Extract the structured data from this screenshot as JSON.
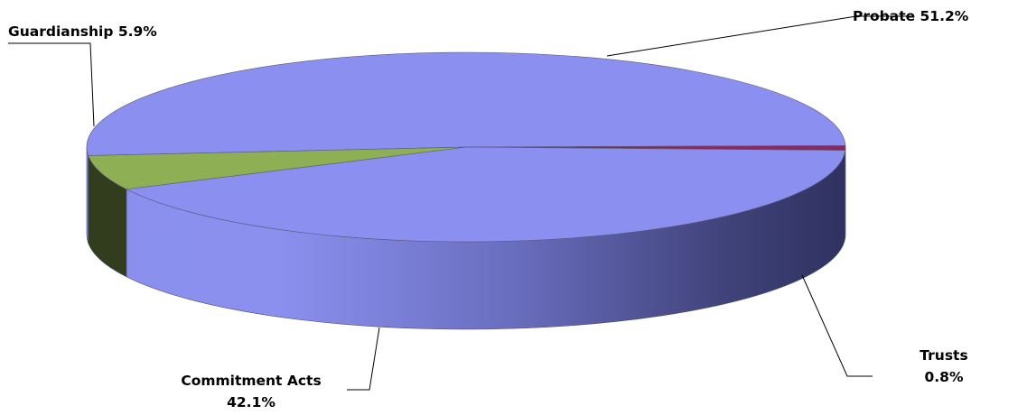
{
  "chart_data": {
    "type": "pie",
    "style": "3d",
    "categories": [
      "Probate",
      "Trusts",
      "Commitment Acts",
      "Guardianship"
    ],
    "values": [
      51.2,
      0.8,
      42.1,
      5.9
    ],
    "unit": "%",
    "labels": {
      "probate": "Probate 51.2%",
      "trusts_name": "Trusts",
      "trusts_value": "0.8%",
      "commitment_name": "Commitment Acts",
      "commitment_value": "42.1%",
      "guardianship": "Guardianship 5.9%"
    },
    "colors": {
      "Probate": "#8b8ff0",
      "Trusts": "#8a2a5c",
      "Commitment Acts": "#8b8ff0",
      "Guardianship": "#8faf55"
    }
  }
}
